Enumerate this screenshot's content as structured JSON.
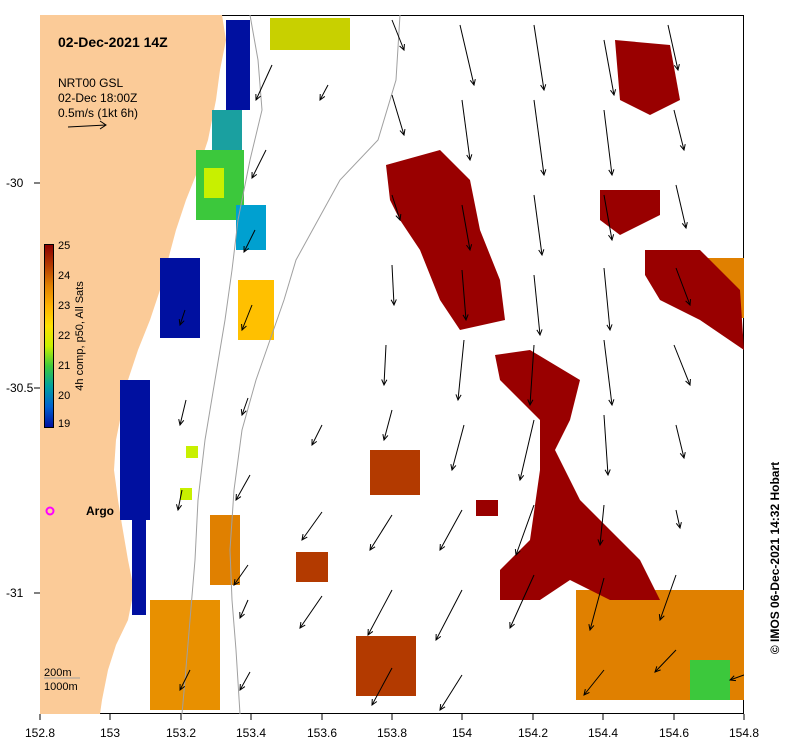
{
  "map": {
    "title": "02-Dec-2021 14Z",
    "model_name": "NRT00 GSL",
    "model_time": "02-Dec 18:00Z",
    "vector_scale_label": "0.5m/s (1kt 6h)",
    "float_label": "Argo",
    "contour_200": "200m",
    "contour_1000": "1000m",
    "credit": "© IMOS 06-Dec-2021 14:32 Hobart",
    "lon_range": [
      152.8,
      154.8
    ],
    "lat_range": [
      -31.3,
      -29.6
    ],
    "x_ticks": [
      "152.8",
      "153",
      "153.2",
      "153.4",
      "153.6",
      "153.8",
      "154",
      "154.2",
      "154.4",
      "154.6",
      "154.8"
    ],
    "y_ticks": [
      "-30",
      "-30.5",
      "-31"
    ],
    "colors": {
      "land": "#fbcb98",
      "sst_hot": "#990000",
      "argo_marker": "#ff00ff",
      "contour": "#a0a0a0"
    }
  },
  "colorbar": {
    "label": "4h comp, p50, All Sats",
    "ticks": [
      "25",
      "24",
      "23",
      "22",
      "21",
      "20",
      "19"
    ],
    "min": 19,
    "max": 25,
    "stops": [
      "#8b0000",
      "#b33a00",
      "#e08000",
      "#ffb000",
      "#ffe000",
      "#c8f000",
      "#3cc83c",
      "#00a0a0",
      "#0060d0",
      "#0010a0"
    ]
  }
}
